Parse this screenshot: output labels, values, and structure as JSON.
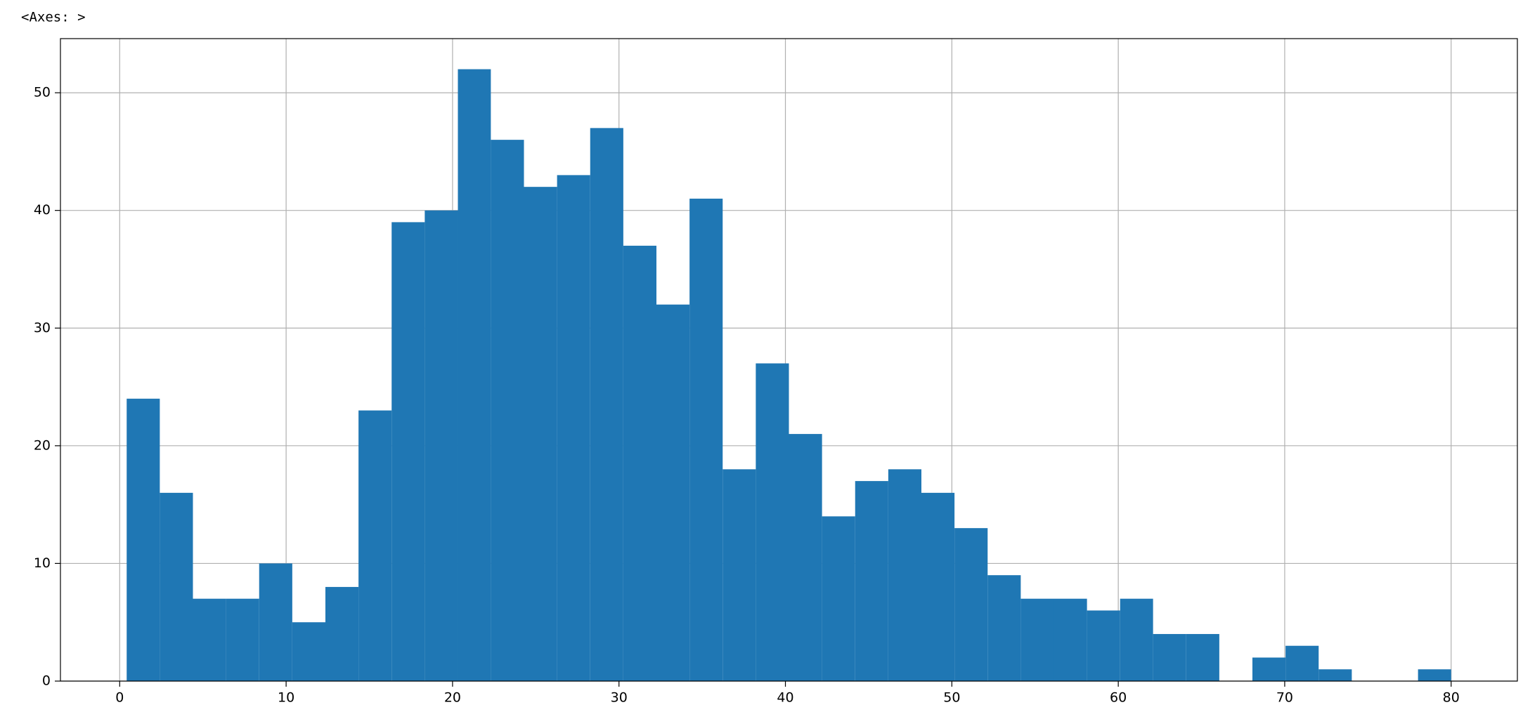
{
  "output_label": "<Axes: >",
  "chart_data": {
    "type": "histogram",
    "bins": [
      0.42,
      2.41,
      4.4,
      6.39,
      8.38,
      10.37,
      12.36,
      14.35,
      16.34,
      18.33,
      20.32,
      22.3,
      24.29,
      26.28,
      28.27,
      30.26,
      32.25,
      34.24,
      36.23,
      38.22,
      40.21,
      42.2,
      44.19,
      46.18,
      48.17,
      50.16,
      52.15,
      54.14,
      56.13,
      58.12,
      60.11,
      62.09,
      64.08,
      66.07,
      68.06,
      70.05,
      72.04,
      74.03,
      76.02,
      78.01,
      80.0
    ],
    "values": [
      24,
      16,
      7,
      7,
      10,
      5,
      8,
      23,
      39,
      40,
      52,
      46,
      42,
      43,
      47,
      37,
      32,
      41,
      18,
      27,
      21,
      14,
      17,
      18,
      16,
      13,
      9,
      7,
      7,
      6,
      7,
      4,
      4,
      0,
      2,
      3,
      1,
      0,
      0,
      1
    ],
    "color": "#1f77b4",
    "xlim": [
      -3.56,
      83.98
    ],
    "ylim": [
      0,
      54.6
    ],
    "xticks": [
      0,
      10,
      20,
      30,
      40,
      50,
      60,
      70,
      80
    ],
    "yticks": [
      0,
      10,
      20,
      30,
      40,
      50
    ],
    "grid": true
  }
}
